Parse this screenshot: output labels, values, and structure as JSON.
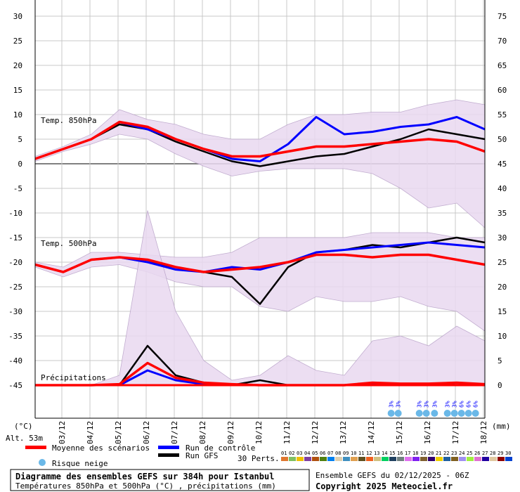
{
  "chart_data": {
    "type": "line",
    "title": "Diagramme des ensembles GEFS sur 384h pour Istanbul",
    "subtitle": "Températures 850hPa et 500hPa (°C) , précipitations (mm)",
    "run_info": "Ensemble GEFS du 02/12/2025 - 06Z",
    "copyright": "Copyright 2025 Meteociel.fr",
    "altitude": "Alt. 53m",
    "left_unit": "(°C)",
    "right_unit": "(mm)",
    "left_axis": {
      "range": [
        -45,
        30
      ],
      "ticks": [
        "30",
        "25",
        "20",
        "15",
        "10",
        "5",
        "0",
        "-5",
        "-10",
        "-15",
        "-20",
        "-25",
        "-30",
        "-35",
        "-40",
        "-45"
      ]
    },
    "right_axis": {
      "range": [
        0,
        75
      ],
      "ticks": [
        "75",
        "70",
        "65",
        "60",
        "55",
        "50",
        "45",
        "40",
        "35",
        "30",
        "25",
        "20",
        "15",
        "10",
        "5",
        "0"
      ]
    },
    "x_hours": [
      0,
      24,
      48,
      72,
      96,
      120,
      144,
      168,
      192,
      216,
      240,
      264,
      288,
      312,
      336,
      360,
      384
    ],
    "x_tick_labels": [
      "03/12",
      "04/12",
      "05/12",
      "06/12",
      "07/12",
      "08/12",
      "09/12",
      "10/12",
      "11/12",
      "12/12",
      "13/12",
      "14/12",
      "15/12",
      "16/12",
      "17/12",
      "18/12"
    ],
    "grid": true,
    "panels": {
      "t850": {
        "label": "Temp. 850hPa",
        "mean": [
          1,
          3,
          5,
          8.5,
          7.5,
          5,
          3,
          1.5,
          1.5,
          2.5,
          3.5,
          3.5,
          4,
          4.5,
          5,
          4.5,
          2.5
        ],
        "control": [
          1,
          3,
          5,
          8.5,
          7,
          5,
          3,
          1,
          0.5,
          4,
          9.5,
          6,
          6.5,
          7.5,
          8,
          9.5,
          7
        ],
        "gfs": [
          1,
          3,
          5,
          8,
          7,
          4.5,
          2.5,
          0.5,
          -0.5,
          0.5,
          1.5,
          2,
          3.5,
          5,
          7,
          6,
          5
        ],
        "min": [
          0.5,
          2.5,
          4,
          6,
          5,
          2,
          -0.5,
          -2.5,
          -1.5,
          -1,
          -1,
          -1,
          -2,
          -5,
          -9,
          -8,
          -13
        ],
        "max": [
          1.5,
          3.5,
          6,
          11,
          9,
          8,
          6,
          5,
          5,
          8,
          10,
          10,
          10.5,
          10.5,
          12,
          13,
          12
        ]
      },
      "t500": {
        "label": "Temp. 500hPa",
        "mean": [
          -20.5,
          -22,
          -19.5,
          -19,
          -19.5,
          -21,
          -22,
          -21.5,
          -21,
          -20,
          -18.5,
          -18.5,
          -19,
          -18.5,
          -18.5,
          -19.5,
          -20.5
        ],
        "control": [
          -20.5,
          -22,
          -19.5,
          -19,
          -20,
          -21.5,
          -22,
          -21,
          -21.5,
          -20,
          -18,
          -17.5,
          -17,
          -16.5,
          -16,
          -16.5,
          -17
        ],
        "gfs": [
          -20.5,
          -22,
          -19.5,
          -19,
          -20,
          -21,
          -22,
          -23,
          -28.5,
          -21,
          -18,
          -17.5,
          -16.5,
          -17,
          -16,
          -15,
          -16
        ],
        "min": [
          -21,
          -23,
          -21,
          -20.5,
          -22,
          -24,
          -25,
          -25,
          -29,
          -30,
          -27,
          -28,
          -28,
          -27,
          -29,
          -30,
          -34
        ],
        "max": [
          -20,
          -21,
          -18,
          -18,
          -18.5,
          -19,
          -19,
          -18,
          -15,
          -15,
          -15,
          -15,
          -14,
          -14,
          -14,
          -15,
          -15
        ]
      },
      "precip": {
        "label": "Précipitations",
        "mean": [
          0,
          0,
          0,
          0.2,
          4.5,
          1.5,
          0.5,
          0.2,
          0,
          0,
          0,
          0,
          0.5,
          0.3,
          0.3,
          0.5,
          0.2
        ],
        "control": [
          0,
          0,
          0,
          0,
          3,
          1,
          0.2,
          0,
          0,
          0,
          0,
          0,
          0.3,
          0,
          0,
          0.5,
          0
        ],
        "gfs": [
          0,
          0,
          0,
          0,
          8,
          2,
          0.5,
          0,
          1,
          0,
          0,
          0,
          0,
          0,
          0,
          0.5,
          0
        ],
        "min": [
          0,
          0,
          0,
          0,
          0,
          0,
          0,
          0,
          0,
          0,
          0,
          0,
          0,
          0,
          0,
          0,
          0
        ],
        "max": [
          0,
          0,
          0,
          2,
          35.5,
          15,
          5,
          1,
          2,
          6,
          3,
          2,
          9,
          10,
          8,
          12,
          9
        ]
      }
    },
    "snow_risk": [
      {
        "hour": 304,
        "label": "3%"
      },
      {
        "hour": 310,
        "label": "3%"
      },
      {
        "hour": 328,
        "label": "3%"
      },
      {
        "hour": 334,
        "label": "3%"
      },
      {
        "hour": 341,
        "label": "3%"
      },
      {
        "hour": 352,
        "label": "3%"
      },
      {
        "hour": 358,
        "label": "3%"
      },
      {
        "hour": 364,
        "label": "6%"
      },
      {
        "hour": 370,
        "label": "6%"
      },
      {
        "hour": 376,
        "label": "6%"
      }
    ],
    "legend": {
      "mean": "Moyenne des scénarios",
      "control": "Run de contrôle",
      "gfs": "Run GFS",
      "snow": "Risque neige",
      "perts": "30 Perts."
    },
    "colors": {
      "mean": "#ff0000",
      "control": "#0000ff",
      "gfs": "#000000",
      "snow": "#6ab8e8",
      "snow_text": "#0000ff"
    },
    "pert_colors": [
      "#e07830",
      "#80c060",
      "#f0c000",
      "#8040a0",
      "#b05010",
      "#508010",
      "#0080f0",
      "#e0d0b0",
      "#4090c0",
      "#e0a050",
      "#605020",
      "#f06020",
      "#d0c080",
      "#00d060",
      "#204060",
      "#708080",
      "#e070f0",
      "#8020f0",
      "#806030",
      "#300070",
      "#f0d000",
      "#2060a0",
      "#806020",
      "#a090f0",
      "#a0f040",
      "#e070d0",
      "#2000a0",
      "#e0c8a0",
      "#900000",
      "#0040d0"
    ],
    "pert_labels": [
      "01",
      "02",
      "03",
      "04",
      "05",
      "06",
      "07",
      "08",
      "09",
      "10",
      "11",
      "12",
      "13",
      "14",
      "15",
      "16",
      "17",
      "18",
      "19",
      "20",
      "21",
      "22",
      "23",
      "24",
      "25",
      "26",
      "27",
      "28",
      "29",
      "30"
    ]
  }
}
